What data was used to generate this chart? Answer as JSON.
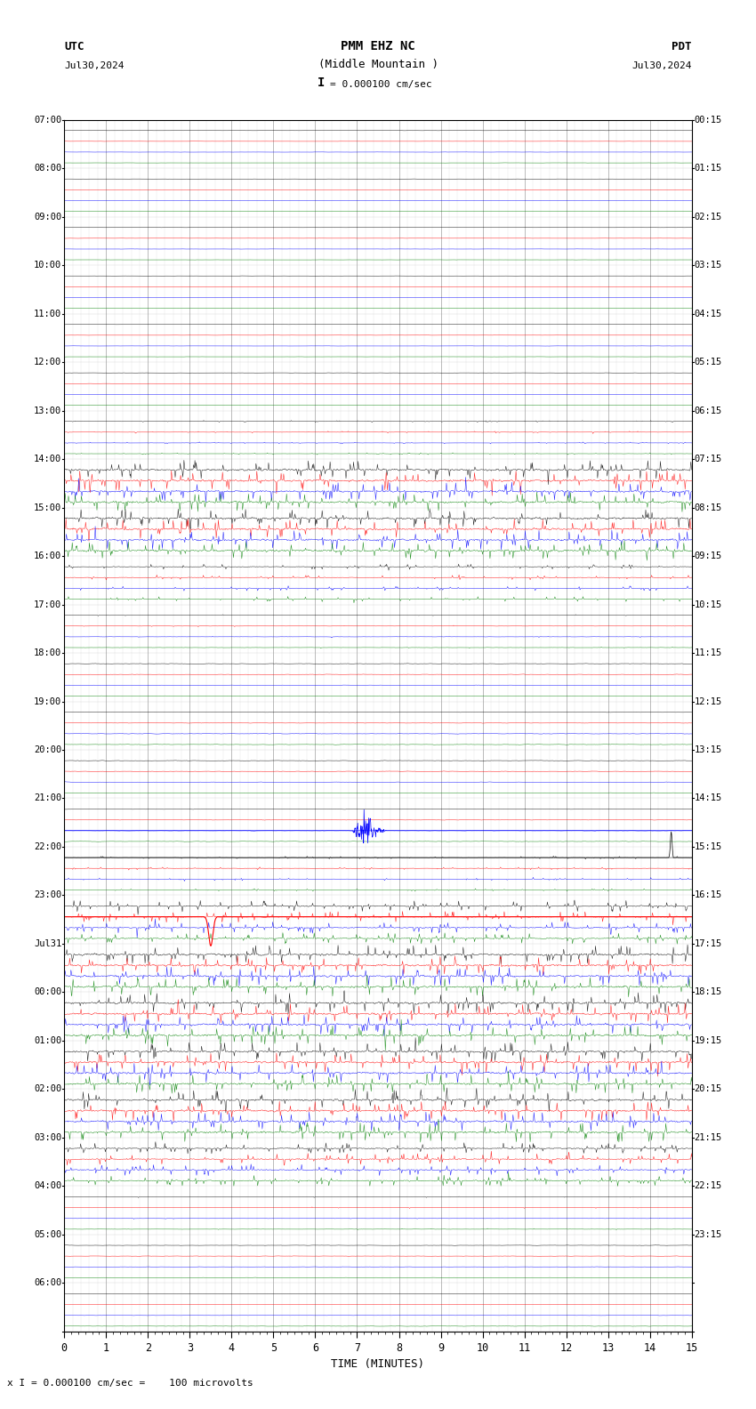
{
  "title_line1": "PMM EHZ NC",
  "title_line2": "(Middle Mountain )",
  "scale_text": "= 0.000100 cm/sec",
  "scale_prefix": "I",
  "utc_label": "UTC",
  "pdt_label": "PDT",
  "date_left": "Jul30,2024",
  "date_right": "Jul30,2024",
  "xlabel": "TIME (MINUTES)",
  "footer_text": "x I = 0.000100 cm/sec =    100 microvolts",
  "utc_times": [
    "07:00",
    "08:00",
    "09:00",
    "10:00",
    "11:00",
    "12:00",
    "13:00",
    "14:00",
    "15:00",
    "16:00",
    "17:00",
    "18:00",
    "19:00",
    "20:00",
    "21:00",
    "22:00",
    "23:00",
    "Jul31",
    "00:00",
    "01:00",
    "02:00",
    "03:00",
    "04:00",
    "05:00",
    "06:00"
  ],
  "pdt_times": [
    "00:15",
    "01:15",
    "02:15",
    "03:15",
    "04:15",
    "05:15",
    "06:15",
    "07:15",
    "08:15",
    "09:15",
    "10:15",
    "11:15",
    "12:15",
    "13:15",
    "14:15",
    "15:15",
    "16:15",
    "17:15",
    "18:15",
    "19:15",
    "20:15",
    "21:15",
    "22:15",
    "23:15",
    ""
  ],
  "n_rows": 25,
  "n_minutes": 15,
  "colors": [
    "black",
    "red",
    "blue",
    "green"
  ],
  "background_color": "white",
  "grid_color": "#aaaaaa",
  "text_color": "black",
  "figsize": [
    8.5,
    15.84
  ],
  "dpi": 100,
  "noise_levels": [
    0.03,
    0.03,
    0.03,
    0.03,
    0.03,
    0.05,
    0.12,
    0.95,
    0.95,
    0.35,
    0.12,
    0.08,
    0.08,
    0.08,
    0.08,
    0.18,
    0.55,
    0.95,
    0.95,
    0.95,
    0.95,
    0.55,
    0.12,
    0.06,
    0.06
  ],
  "spike_rows": [
    6,
    7,
    8,
    9,
    15,
    16,
    17,
    18,
    19,
    20,
    21
  ],
  "event_row_23_col": 7.3,
  "event_row_23_amp": 0.7
}
